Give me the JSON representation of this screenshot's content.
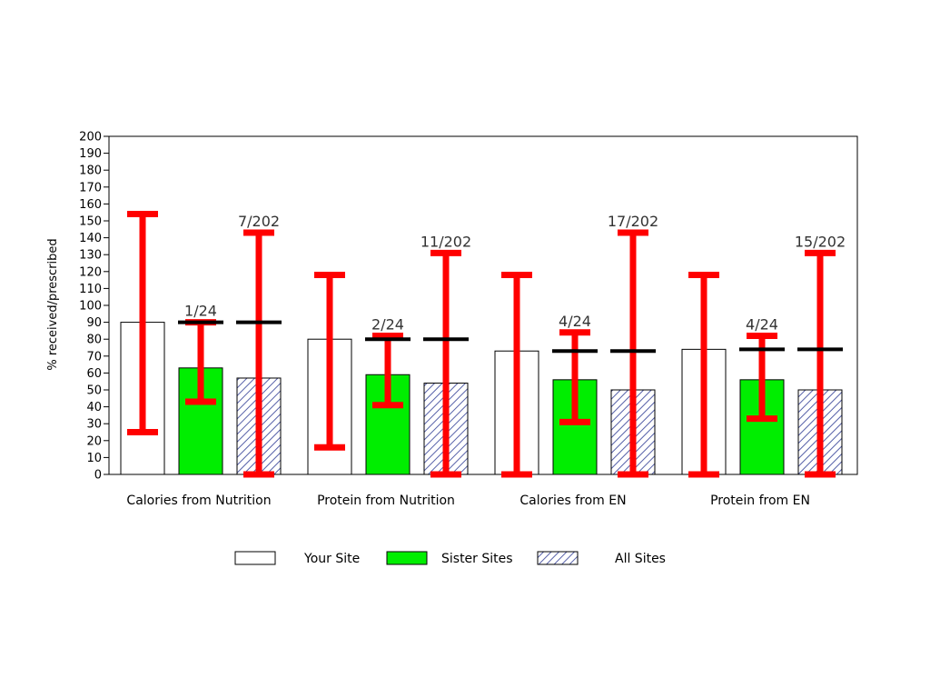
{
  "chart_data": {
    "type": "bar",
    "title": "",
    "xlabel": "",
    "ylabel": "% received/prescribed",
    "ylim": [
      0,
      200
    ],
    "ytick_step": 10,
    "grid": false,
    "legend_position": "bottom",
    "categories": [
      "Calories from Nutrition",
      "Protein from Nutrition",
      "Calories from EN",
      "Protein from EN"
    ],
    "series": [
      {
        "name": "Your Site",
        "fill": "#ffffff",
        "pattern": "none",
        "values": [
          90,
          80,
          73,
          74
        ],
        "error_low": [
          25,
          16,
          0,
          0
        ],
        "error_high": [
          154,
          118,
          118,
          118
        ],
        "annotations": [
          "",
          "",
          "",
          ""
        ]
      },
      {
        "name": "Sister Sites",
        "fill": "#00ee00",
        "pattern": "none",
        "values": [
          63,
          59,
          56,
          56
        ],
        "error_low": [
          43,
          41,
          31,
          33
        ],
        "error_high": [
          90,
          82,
          84,
          82
        ],
        "annotations": [
          "1/24",
          "2/24",
          "4/24",
          "4/24"
        ]
      },
      {
        "name": "All Sites",
        "fill": "#ffffff",
        "pattern": "diagonal-hatch",
        "hatch_color": "#5560a8",
        "values": [
          57,
          54,
          50,
          50
        ],
        "error_low": [
          0,
          0,
          0,
          0
        ],
        "error_high": [
          143,
          131,
          143,
          131
        ],
        "annotations": [
          "7/202",
          "11/202",
          "17/202",
          "15/202"
        ]
      }
    ],
    "reference_lines": [
      90,
      80,
      73,
      74
    ],
    "error_bar_color": "#ff0000",
    "reference_line_color": "#000000"
  }
}
